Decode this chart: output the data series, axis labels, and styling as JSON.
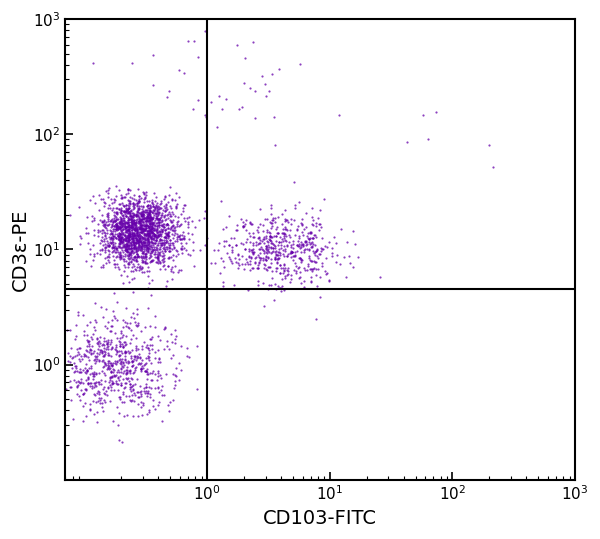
{
  "xlabel": "CD103-FITC",
  "ylabel": "CD3ε-PE",
  "dot_color": "#6600AA",
  "dot_alpha": 0.75,
  "dot_size": 2.5,
  "xlim": [
    0.07,
    1000
  ],
  "ylim": [
    0.1,
    1000
  ],
  "gate_x": 1.0,
  "gate_y": 4.5,
  "background_color": "#ffffff",
  "seed": 12345
}
